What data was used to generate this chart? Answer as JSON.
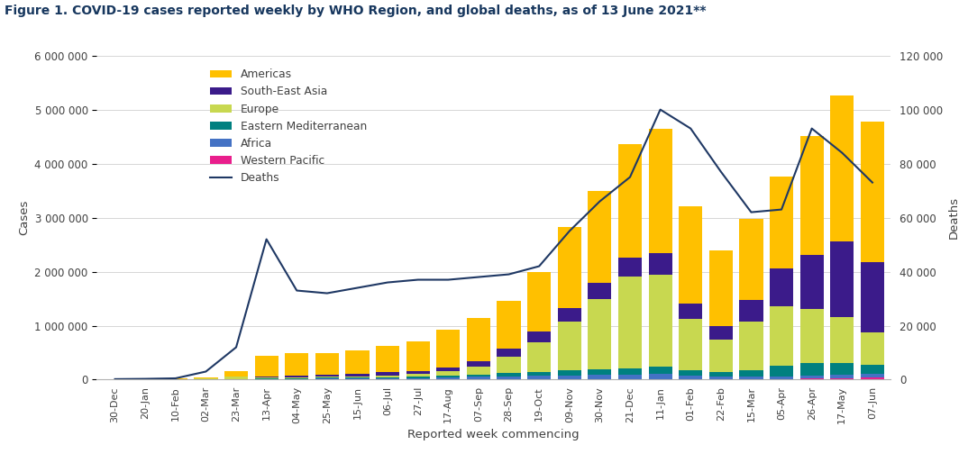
{
  "title": "Figure 1. COVID-19 cases reported weekly by WHO Region, and global deaths, as of 13 June 2021**",
  "xlabel": "Reported week commencing",
  "ylabel_left": "Cases",
  "ylabel_right": "Deaths",
  "x_labels": [
    "30-Dec",
    "20-Jan",
    "10-Feb",
    "02-Mar",
    "23-Mar",
    "13-Apr",
    "04-May",
    "25-May",
    "15-Jun",
    "06-Jul",
    "27-Jul",
    "17-Aug",
    "07-Sep",
    "28-Sep",
    "19-Oct",
    "09-Nov",
    "30-Nov",
    "21-Dec",
    "11-Jan",
    "01-Feb",
    "22-Feb",
    "15-Mar",
    "05-Apr",
    "26-Apr",
    "17-May",
    "07-Jun"
  ],
  "americas": [
    4000,
    7000,
    10000,
    25000,
    100000,
    380000,
    420000,
    400000,
    420000,
    480000,
    550000,
    700000,
    800000,
    900000,
    1100000,
    1500000,
    1700000,
    2100000,
    2300000,
    1800000,
    1400000,
    1500000,
    1700000,
    2200000,
    2700000,
    2600000
  ],
  "southeast_asia": [
    500,
    1000,
    2000,
    3000,
    8000,
    15000,
    30000,
    40000,
    50000,
    60000,
    65000,
    80000,
    100000,
    150000,
    200000,
    250000,
    300000,
    350000,
    400000,
    300000,
    250000,
    400000,
    700000,
    1000000,
    1400000,
    1300000
  ],
  "europe": [
    500,
    2000,
    4000,
    15000,
    40000,
    25000,
    15000,
    15000,
    25000,
    35000,
    50000,
    80000,
    150000,
    300000,
    550000,
    900000,
    1300000,
    1700000,
    1700000,
    950000,
    600000,
    900000,
    1100000,
    1000000,
    850000,
    600000
  ],
  "eastern_med": [
    300,
    600,
    1200,
    3000,
    8000,
    12000,
    15000,
    18000,
    20000,
    20000,
    22000,
    30000,
    40000,
    55000,
    70000,
    90000,
    100000,
    110000,
    130000,
    90000,
    80000,
    130000,
    200000,
    230000,
    220000,
    160000
  ],
  "africa": [
    100,
    300,
    600,
    1500,
    3000,
    6000,
    12000,
    18000,
    18000,
    20000,
    25000,
    35000,
    45000,
    55000,
    60000,
    70000,
    75000,
    80000,
    100000,
    65000,
    45000,
    40000,
    45000,
    55000,
    60000,
    70000
  ],
  "western_pacific": [
    200,
    500,
    1000,
    2000,
    2000,
    1500,
    1500,
    1500,
    2000,
    3000,
    4000,
    5000,
    6000,
    7000,
    8000,
    10000,
    12000,
    14000,
    14000,
    12000,
    10000,
    12000,
    15000,
    20000,
    30000,
    40000
  ],
  "deaths": [
    200,
    300,
    500,
    3000,
    12000,
    52000,
    33000,
    32000,
    34000,
    36000,
    37000,
    37000,
    38000,
    39000,
    42000,
    55000,
    66000,
    75000,
    100000,
    93000,
    77000,
    62000,
    63000,
    93000,
    84000,
    73000
  ],
  "colors": {
    "americas": "#FFC000",
    "southeast_asia": "#3B1B8A",
    "europe": "#C8D850",
    "eastern_med": "#008080",
    "africa": "#4472C4",
    "western_pacific": "#E91E8C",
    "deaths": "#1F3864"
  },
  "ylim_left": [
    0,
    6000000
  ],
  "ylim_right": [
    0,
    120000
  ],
  "yticks_left": [
    0,
    1000000,
    2000000,
    3000000,
    4000000,
    5000000,
    6000000
  ],
  "yticks_right": [
    0,
    20000,
    40000,
    60000,
    80000,
    100000,
    120000
  ],
  "ytick_labels_left": [
    "0",
    "1 000 000",
    "2 000 000",
    "3 000 000",
    "4 000 000",
    "5 000 000",
    "6 000 000"
  ],
  "ytick_labels_right": [
    "0",
    "20 000",
    "40 000",
    "60 000",
    "80 000",
    "100 000",
    "120 000"
  ],
  "legend_labels": [
    "Americas",
    "South-East Asia",
    "Europe",
    "Eastern Mediterranean",
    "Africa",
    "Western Pacific",
    "Deaths"
  ],
  "background_color": "#FFFFFF",
  "title_color": "#17375E"
}
